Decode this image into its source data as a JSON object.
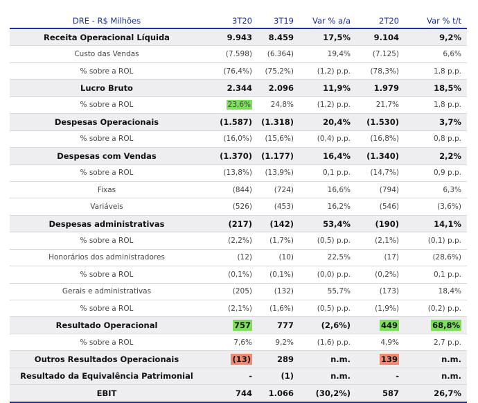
{
  "table": {
    "headers": [
      "DRE - R$ Milhões",
      "3T20",
      "3T19",
      "Var % a/a",
      "2T20",
      "Var % t/t"
    ],
    "rows": [
      {
        "label": "Receita Operacional Líquida",
        "values": [
          "9.943",
          "8.459",
          "17,5%",
          "9.104",
          "9,2%"
        ],
        "style": "bold"
      },
      {
        "label": "Custo das Vendas",
        "values": [
          "(7.598)",
          "(6.364)",
          "19,4%",
          "(7.125)",
          "6,6%"
        ],
        "style": "sub"
      },
      {
        "label": "% sobre a ROL",
        "values": [
          "(76,4%)",
          "(75,2%)",
          "(1,2) p.p.",
          "(78,3%)",
          "1,8 p.p."
        ],
        "style": "sub"
      },
      {
        "label": "Lucro Bruto",
        "values": [
          "2.344",
          "2.096",
          "11,9%",
          "1.979",
          "18,5%"
        ],
        "style": "bold"
      },
      {
        "label": "% sobre a ROL",
        "values": [
          "23,6%",
          "24,8%",
          "(1,2) p.p.",
          "21,7%",
          "1,8 p.p."
        ],
        "style": "sub"
      },
      {
        "label": "Despesas Operacionais",
        "values": [
          "(1.587)",
          "(1.318)",
          "20,4%",
          "(1.530)",
          "3,7%"
        ],
        "style": "bold"
      },
      {
        "label": "% sobre a ROL",
        "values": [
          "(16,0%)",
          "(15,6%)",
          "(0,4) p.p.",
          "(16,8%)",
          "0,8 p.p."
        ],
        "style": "sub"
      },
      {
        "label": "Despesas com Vendas",
        "values": [
          "(1.370)",
          "(1.177)",
          "16,4%",
          "(1.340)",
          "2,2%"
        ],
        "style": "bold"
      },
      {
        "label": "% sobre a ROL",
        "values": [
          "(13,8%)",
          "(13,9%)",
          "0,1 p.p.",
          "(14,7%)",
          "0,9 p.p."
        ],
        "style": "sub"
      },
      {
        "label": "Fixas",
        "values": [
          "(844)",
          "(724)",
          "16,6%",
          "(794)",
          "6,3%"
        ],
        "style": "sub"
      },
      {
        "label": "Variáveis",
        "values": [
          "(526)",
          "(453)",
          "16,2%",
          "(546)",
          "(3,6%)"
        ],
        "style": "sub"
      },
      {
        "label": "Despesas administrativas",
        "values": [
          "(217)",
          "(142)",
          "53,4%",
          "(190)",
          "14,1%"
        ],
        "style": "bold"
      },
      {
        "label": "% sobre a ROL",
        "values": [
          "(2,2%)",
          "(1,7%)",
          "(0,5) p.p.",
          "(2,1%)",
          "(0,1) p.p."
        ],
        "style": "sub"
      },
      {
        "label": "Honorários dos administradores",
        "values": [
          "(12)",
          "(10)",
          "22,5%",
          "(17)",
          "(28,6%)"
        ],
        "style": "sub"
      },
      {
        "label": "% sobre a ROL",
        "values": [
          "(0,1%)",
          "(0,1%)",
          "(0,0) p.p.",
          "(0,2%)",
          "0,1 p.p."
        ],
        "style": "sub"
      },
      {
        "label": "Gerais e administrativas",
        "values": [
          "(205)",
          "(132)",
          "55,7%",
          "(173)",
          "18,4%"
        ],
        "style": "sub"
      },
      {
        "label": "% sobre a ROL",
        "values": [
          "(2,1%)",
          "(1,6%)",
          "(0,5) p.p.",
          "(1,9%)",
          "(0,2) p.p."
        ],
        "style": "sub"
      },
      {
        "label": "Resultado Operacional",
        "values": [
          "757",
          "777",
          "(2,6%)",
          "449",
          "68,8%"
        ],
        "style": "bold"
      },
      {
        "label": "% sobre a ROL",
        "values": [
          "7,6%",
          "9,2%",
          "(1,6) p.p.",
          "4,9%",
          "2,7 p.p."
        ],
        "style": "sub"
      },
      {
        "label": "Outros Resultados Operacionais",
        "values": [
          "(13)",
          "289",
          "n.m.",
          "139",
          "n.m."
        ],
        "style": "bold"
      },
      {
        "label": "Resultado da Equivalência Patrimonial",
        "values": [
          "-",
          "(1)",
          "n.m.",
          "-",
          "n.m."
        ],
        "style": "bold"
      },
      {
        "label": "EBIT",
        "values": [
          "744",
          "1.066",
          "(30,2%)",
          "587",
          "26,7%"
        ],
        "style": "bold"
      }
    ]
  },
  "colors": {
    "header": "#1a2fa0",
    "highlight_green": "#7ee05a",
    "highlight_red": "#f08a72",
    "row_shade": "#eeeef1"
  }
}
